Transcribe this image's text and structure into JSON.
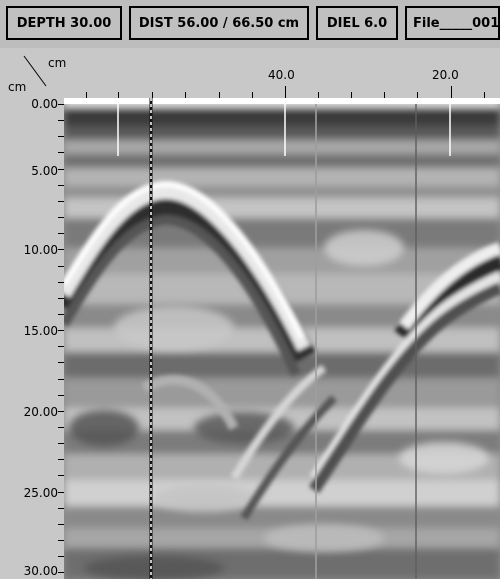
{
  "toolbar": {
    "depth_label": "DEPTH 30.00",
    "dist_label": "DIST 56.00 / 66.50 cm",
    "diel_label": "DIEL 6.0",
    "file_label": "File_____001"
  },
  "axes": {
    "x_unit": "cm",
    "y_unit": "cm",
    "x_ticks": [
      "40.0",
      "20.0"
    ],
    "y_ticks": [
      "0.00",
      "5.00",
      "10.00",
      "15.00",
      "20.00",
      "25.00",
      "30.00"
    ]
  },
  "scan": {
    "name": "radar-scan-image"
  }
}
